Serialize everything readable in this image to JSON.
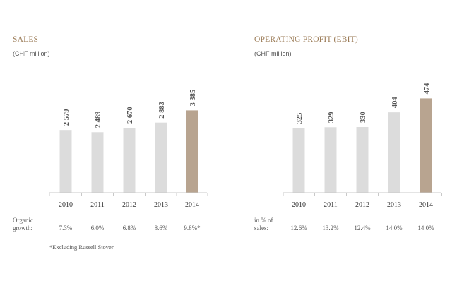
{
  "colors": {
    "title": "#9a7a55",
    "text": "#555555",
    "bar": "#dcdcdc",
    "bar_highlight": "#b8a490",
    "axis": "#c8c8c8"
  },
  "chart_data": [
    {
      "type": "bar",
      "title": "SALES",
      "subtitle": "(CHF million)",
      "categories": [
        "2010",
        "2011",
        "2012",
        "2013",
        "2014"
      ],
      "values": [
        2579,
        2489,
        2670,
        2883,
        3385
      ],
      "value_labels": [
        "2 579",
        "2 489",
        "2 670",
        "2 883",
        "3 385"
      ],
      "highlight_index": 4,
      "ylim": [
        0,
        4500
      ],
      "grid": false,
      "legend": "none",
      "footer_label": [
        "Organic",
        "growth:"
      ],
      "footer_values": [
        "7.3%",
        "6.0%",
        "6.8%",
        "8.6%",
        "9.8%*"
      ],
      "note": "*Excluding Russell Stover"
    },
    {
      "type": "bar",
      "title": "OPERATING PROFIT (EBIT)",
      "subtitle": "(CHF million)",
      "categories": [
        "2010",
        "2011",
        "2012",
        "2013",
        "2014"
      ],
      "values": [
        325,
        329,
        330,
        404,
        474
      ],
      "value_labels": [
        "325",
        "329",
        "330",
        "404",
        "474"
      ],
      "highlight_index": 4,
      "ylim": [
        0,
        550
      ],
      "grid": false,
      "legend": "none",
      "footer_label": [
        "in % of",
        "sales:"
      ],
      "footer_values": [
        "12.6%",
        "13.2%",
        "12.4%",
        "14.0%",
        "14.0%"
      ]
    }
  ]
}
